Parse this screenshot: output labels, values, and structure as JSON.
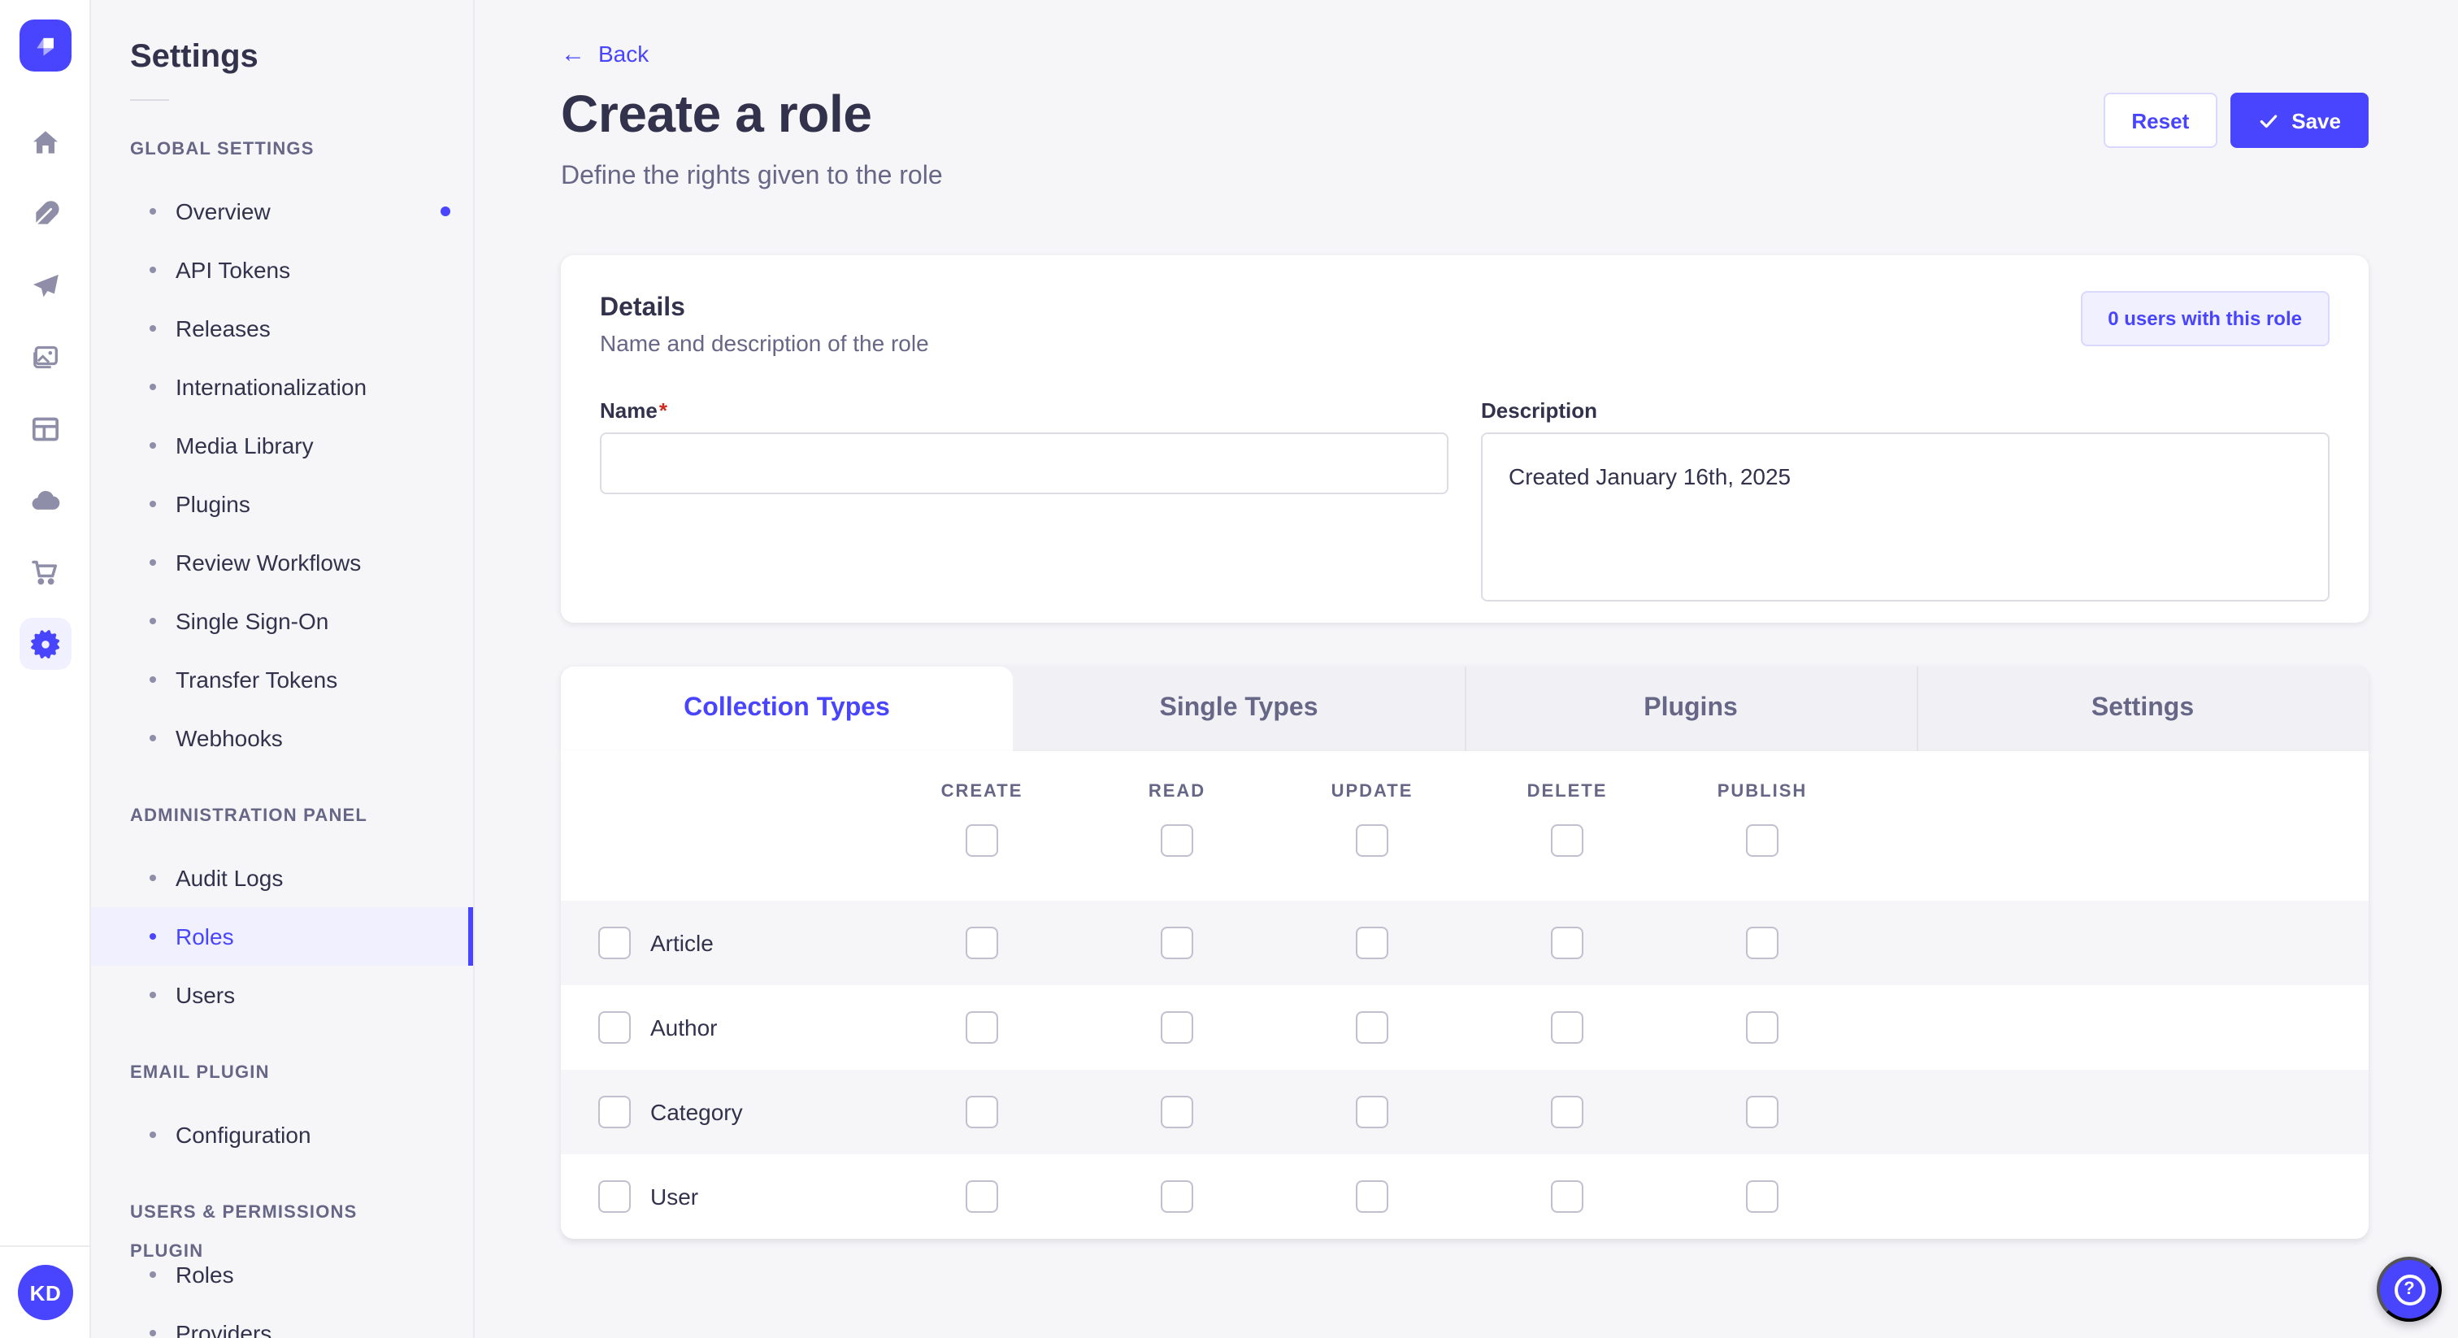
{
  "colors": {
    "primary": "#4945ff",
    "primary_light_bg": "#f0f0ff",
    "text_dark": "#32324d",
    "text_muted": "#666687",
    "page_bg": "#f6f6f9",
    "border": "#dcdce4",
    "required_red": "#d02b20"
  },
  "rail": {
    "avatar_initials": "KD",
    "icons": [
      "strapi-logo",
      "home",
      "feather",
      "paper-plane",
      "media-library",
      "layout",
      "cloud",
      "shopping-cart",
      "settings-gear"
    ]
  },
  "sidebar": {
    "title": "Settings",
    "sections": [
      {
        "label": "GLOBAL SETTINGS",
        "items": [
          {
            "label": "Overview",
            "dot": true
          },
          {
            "label": "API Tokens"
          },
          {
            "label": "Releases"
          },
          {
            "label": "Internationalization"
          },
          {
            "label": "Media Library"
          },
          {
            "label": "Plugins"
          },
          {
            "label": "Review Workflows"
          },
          {
            "label": "Single Sign-On"
          },
          {
            "label": "Transfer Tokens"
          },
          {
            "label": "Webhooks"
          }
        ]
      },
      {
        "label": "ADMINISTRATION PANEL",
        "items": [
          {
            "label": "Audit Logs"
          },
          {
            "label": "Roles",
            "active": true
          },
          {
            "label": "Users"
          }
        ]
      },
      {
        "label": "EMAIL PLUGIN",
        "items": [
          {
            "label": "Configuration"
          }
        ]
      },
      {
        "label": "USERS & PERMISSIONS PLUGIN",
        "items": [
          {
            "label": "Roles"
          },
          {
            "label": "Providers"
          }
        ]
      }
    ]
  },
  "header": {
    "back_label": "Back",
    "title": "Create a role",
    "subtitle": "Define the rights given to the role",
    "reset_label": "Reset",
    "save_label": "Save"
  },
  "details": {
    "heading": "Details",
    "subheading": "Name and description of the role",
    "users_count_label": "0 users with this role",
    "name_label": "Name",
    "name_required_mark": "*",
    "name_value": "",
    "description_label": "Description",
    "description_value": "Created January 16th, 2025"
  },
  "permissions": {
    "tabs": [
      {
        "label": "Collection Types",
        "active": true
      },
      {
        "label": "Single Types"
      },
      {
        "label": "Plugins"
      },
      {
        "label": "Settings"
      }
    ],
    "columns": [
      "CREATE",
      "READ",
      "UPDATE",
      "DELETE",
      "PUBLISH"
    ],
    "select_all_checked": [
      false,
      false,
      false,
      false,
      false
    ],
    "rows": [
      {
        "label": "Article",
        "row_checked": false,
        "checked": [
          false,
          false,
          false,
          false,
          false
        ]
      },
      {
        "label": "Author",
        "row_checked": false,
        "checked": [
          false,
          false,
          false,
          false,
          false
        ]
      },
      {
        "label": "Category",
        "row_checked": false,
        "checked": [
          false,
          false,
          false,
          false,
          false
        ]
      },
      {
        "label": "User",
        "row_checked": false,
        "checked": [
          false,
          false,
          false,
          false,
          false
        ]
      }
    ]
  },
  "help": {
    "icon": "question-mark"
  }
}
